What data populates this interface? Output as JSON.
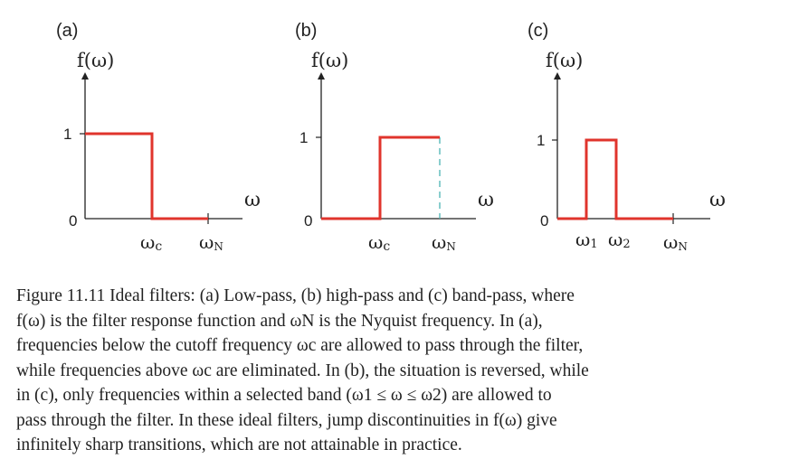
{
  "figure": {
    "line_color": "#e0342c",
    "axis_color": "#222222",
    "dash_color": "#4bb3b3",
    "panels": [
      {
        "label": "(a)",
        "ylabel": "f(ω)",
        "xlabel": "ω",
        "ytick_labels": [
          "1",
          "0"
        ],
        "xtick_labels": [
          "ωc",
          "ωN"
        ],
        "chart_data": {
          "type": "line",
          "title": "(a)",
          "ylabel": "f(ω)",
          "xlabel": "ω",
          "x": [
            "0",
            "ωc",
            "ωc",
            "ωN"
          ],
          "y": [
            1,
            1,
            0,
            0
          ],
          "ylim": [
            0,
            1
          ]
        }
      },
      {
        "label": "(b)",
        "ylabel": "f(ω)",
        "xlabel": "ω",
        "ytick_labels": [
          "1",
          "0"
        ],
        "xtick_labels": [
          "ωc",
          "ωN"
        ],
        "chart_data": {
          "type": "line",
          "title": "(b)",
          "ylabel": "f(ω)",
          "xlabel": "ω",
          "x": [
            "0",
            "ωc",
            "ωc",
            "ωN"
          ],
          "y": [
            0,
            0,
            1,
            1
          ],
          "ylim": [
            0,
            1
          ]
        }
      },
      {
        "label": "(c)",
        "ylabel": "f(ω)",
        "xlabel": "ω",
        "ytick_labels": [
          "1",
          "0"
        ],
        "xtick_labels": [
          "ω1",
          "ω2",
          "ωN"
        ],
        "chart_data": {
          "type": "line",
          "title": "(c)",
          "ylabel": "f(ω)",
          "xlabel": "ω",
          "x": [
            "0",
            "ω1",
            "ω1",
            "ω2",
            "ω2",
            "ωN"
          ],
          "y": [
            0,
            0,
            1,
            1,
            0,
            0
          ],
          "ylim": [
            0,
            1
          ]
        }
      }
    ]
  },
  "caption": {
    "lines": [
      "Figure 11.11 Ideal filters: (a) Low-pass, (b) high-pass and (c) band-pass, where",
      "f(ω) is the filter response function and ωN is the Nyquist frequency. In (a),",
      "frequencies below the cutoff frequency ωc are allowed to pass through the filter,",
      "while frequencies above ωc are eliminated. In (b), the situation is reversed, while",
      "in (c), only frequencies within a selected band (ω1 ≤ ω ≤ ω2) are allowed to",
      "pass through the filter. In these ideal filters, jump discontinuities in f(ω) give",
      "infinitely sharp transitions, which are not attainable in practice."
    ]
  }
}
